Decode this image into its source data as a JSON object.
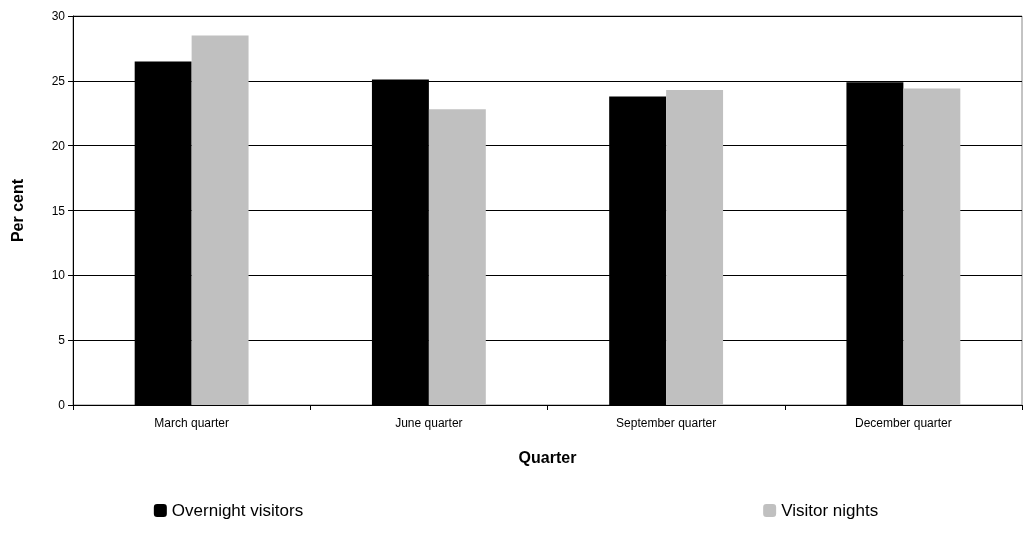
{
  "chart_data": {
    "type": "bar",
    "xlabel": "Quarter",
    "ylabel": "Per cent",
    "categories": [
      "March quarter",
      "June quarter",
      "September quarter",
      "December quarter"
    ],
    "series": [
      {
        "name": "Overnight visitors",
        "color": "#000000",
        "values": [
          26.5,
          25.1,
          23.8,
          24.9
        ]
      },
      {
        "name": "Visitor nights",
        "color": "#c0c0c0",
        "values": [
          28.5,
          22.8,
          24.3,
          24.4
        ]
      }
    ],
    "ylim": [
      0,
      30
    ],
    "yticks": [
      0,
      5,
      10,
      15,
      20,
      25,
      30
    ],
    "grid": "y",
    "legend": "bottom"
  }
}
